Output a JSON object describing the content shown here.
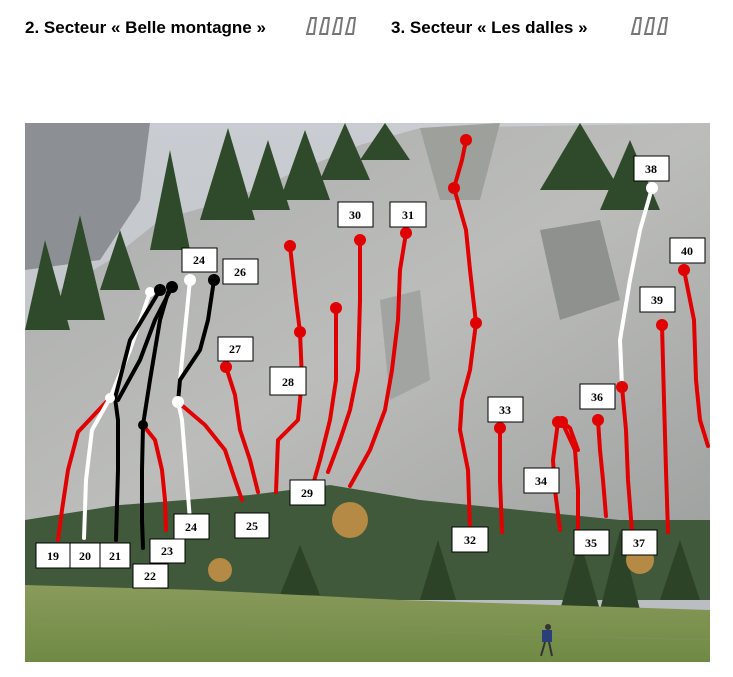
{
  "sectors": [
    {
      "title": "2. Secteur « Belle montagne »",
      "grade_icons": "carabiner-icon",
      "grade_count": 4
    },
    {
      "title": "3. Secteur  « Les dalles »",
      "grade_icons": "carabiner-icon",
      "grade_count": 3
    }
  ],
  "route_colors": {
    "red": "#e00000",
    "white": "#ffffff",
    "black": "#000000"
  },
  "route_labels": [
    "19",
    "20",
    "21",
    "22",
    "23",
    "24",
    "24",
    "25",
    "26",
    "27",
    "28",
    "29",
    "30",
    "31",
    "32",
    "33",
    "34",
    "35",
    "36",
    "37",
    "38",
    "39",
    "40"
  ]
}
